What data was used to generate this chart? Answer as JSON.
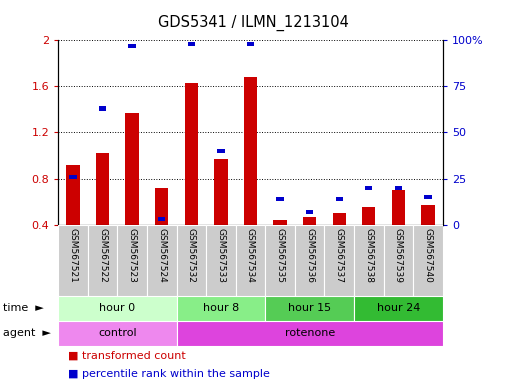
{
  "title": "GDS5341 / ILMN_1213104",
  "samples": [
    "GSM567521",
    "GSM567522",
    "GSM567523",
    "GSM567524",
    "GSM567532",
    "GSM567533",
    "GSM567534",
    "GSM567535",
    "GSM567536",
    "GSM567537",
    "GSM567538",
    "GSM567539",
    "GSM567540"
  ],
  "transformed_count": [
    0.92,
    1.02,
    1.37,
    0.72,
    1.63,
    0.97,
    1.68,
    0.44,
    0.47,
    0.5,
    0.55,
    0.7,
    0.57
  ],
  "percentile_rank": [
    26,
    63,
    97,
    3,
    98,
    40,
    98,
    14,
    7,
    14,
    20,
    20,
    15
  ],
  "ylim_left": [
    0.4,
    2.0
  ],
  "ylim_right": [
    0,
    100
  ],
  "yticks_left": [
    0.4,
    0.8,
    1.2,
    1.6,
    2.0
  ],
  "ytick_labels_left": [
    "0.4",
    "0.8",
    "1.2",
    "1.6",
    "2"
  ],
  "yticks_right": [
    0,
    25,
    50,
    75,
    100
  ],
  "ytick_labels_right": [
    "0",
    "25",
    "50",
    "75",
    "100%"
  ],
  "bar_color_red": "#cc0000",
  "bar_color_blue": "#0000cc",
  "time_groups": [
    {
      "label": "hour 0",
      "start": 0,
      "end": 4,
      "color": "#ccffcc"
    },
    {
      "label": "hour 8",
      "start": 4,
      "end": 7,
      "color": "#88ee88"
    },
    {
      "label": "hour 15",
      "start": 7,
      "end": 10,
      "color": "#55cc55"
    },
    {
      "label": "hour 24",
      "start": 10,
      "end": 13,
      "color": "#33bb33"
    }
  ],
  "agent_groups": [
    {
      "label": "control",
      "start": 0,
      "end": 4,
      "color": "#ee88ee"
    },
    {
      "label": "rotenone",
      "start": 4,
      "end": 13,
      "color": "#dd44dd"
    }
  ],
  "legend_items": [
    {
      "label": "transformed count",
      "color": "#cc0000"
    },
    {
      "label": "percentile rank within the sample",
      "color": "#0000cc"
    }
  ],
  "tick_label_color_left": "#cc0000",
  "tick_label_color_right": "#0000cc",
  "label_bg_color": "#cccccc"
}
